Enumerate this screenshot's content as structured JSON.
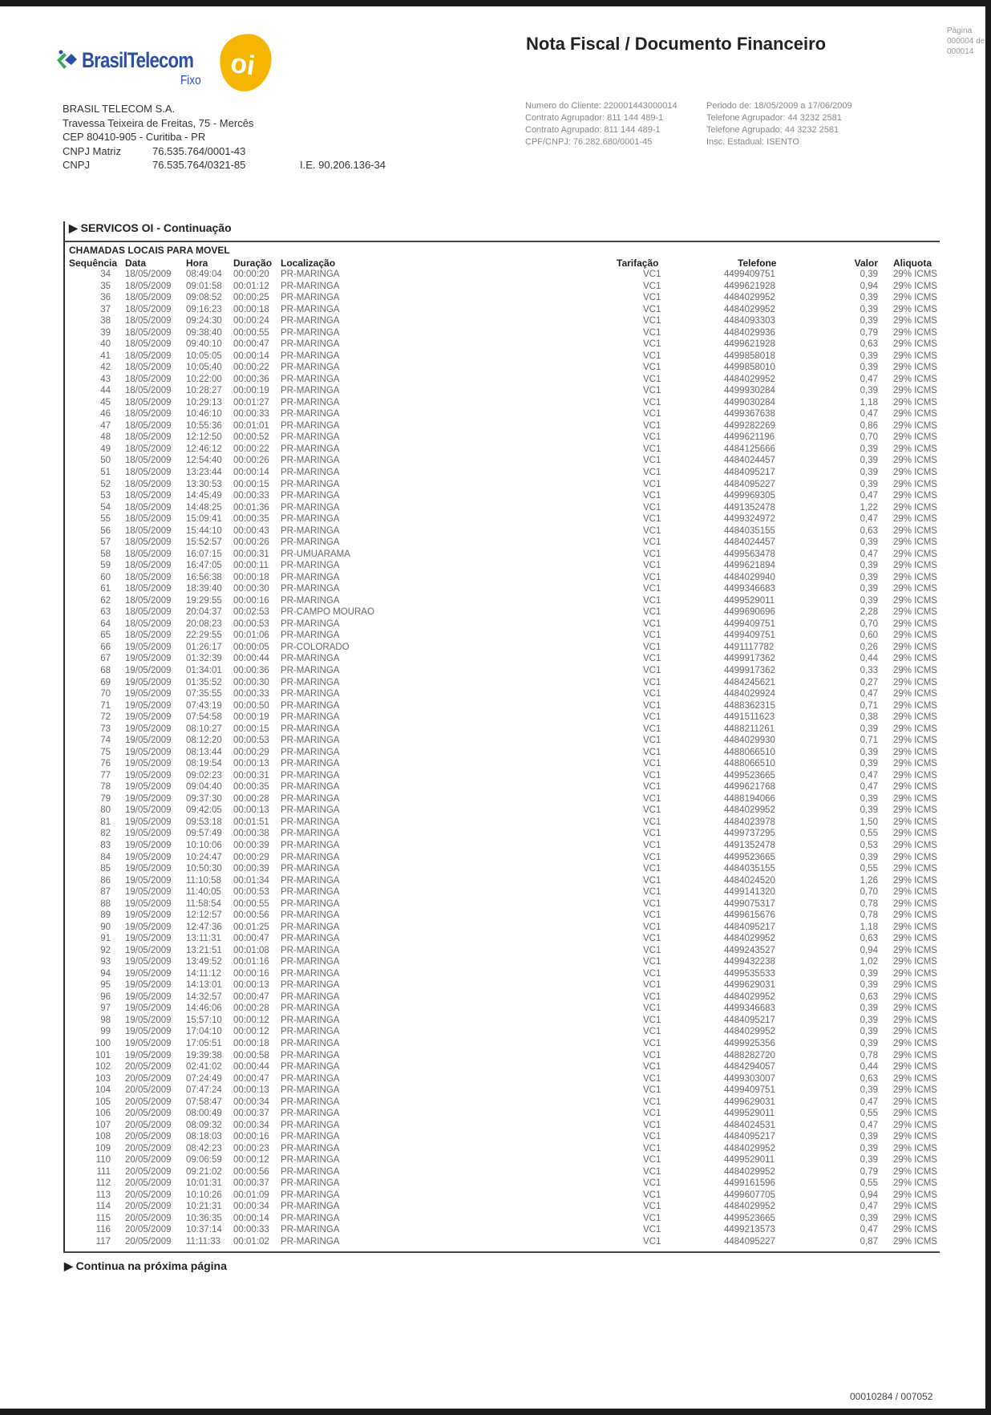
{
  "logo": {
    "brand": "BrasilTelecom",
    "sub": "Fixo",
    "oi": "oi",
    "colors": {
      "blue": "#2a4fa6",
      "green": "#3aa35a",
      "yellow": "#f5b500"
    }
  },
  "header": {
    "title": "Nota Fiscal / Documento Financeiro",
    "page_label": "Página",
    "page_current": "000004 de",
    "page_total": "000014"
  },
  "company": {
    "name": "BRASIL TELECOM S.A.",
    "address": "Travessa Teixeira de Freitas, 75 - Mercês",
    "cep": "CEP 80410-905 - Curitiba - PR",
    "cnpj_matriz_label": "CNPJ Matriz",
    "cnpj_matriz": "76.535.764/0001-43",
    "cnpj_label": "CNPJ",
    "cnpj": "76.535.764/0321-85",
    "ie": "I.E. 90.206.136-34"
  },
  "client": {
    "numero_cliente": "Numero do Cliente: 220001443000014",
    "periodo": "Periodo de: 18/05/2009 a 17/06/2009",
    "contrato_agrupador": "Contrato Agrupador: 811 144 489-1",
    "telefone_agrupador": "Telefone Agrupador: 44 3232 2581",
    "contrato_agrupado": "Contrato Agrupado: 811 144 489-1",
    "telefone_agrupado": "Telefone Agrupado: 44 3232 2581",
    "cpf_cnpj": "CPF/CNPJ: 76.282.680/0001-45",
    "insc_estadual": "Insc. Estadual: ISENTO"
  },
  "section": {
    "title": "SERVICOS OI - Continuação",
    "subtitle": "CHAMADAS LOCAIS PARA MOVEL",
    "columns": [
      "Sequência",
      "Data",
      "Hora",
      "Duração",
      "Localização",
      "Tarifação",
      "Telefone",
      "Valor",
      "Aliquota"
    ],
    "rows": [
      [
        "34",
        "18/05/2009",
        "08:49:04",
        "00:00:20",
        "PR-MARINGA",
        "VC1",
        "4499409751",
        "0,39",
        "29% ICMS"
      ],
      [
        "35",
        "18/05/2009",
        "09:01:58",
        "00:01:12",
        "PR-MARINGA",
        "VC1",
        "4499621928",
        "0,94",
        "29% ICMS"
      ],
      [
        "36",
        "18/05/2009",
        "09:08:52",
        "00:00:25",
        "PR-MARINGA",
        "VC1",
        "4484029952",
        "0,39",
        "29% ICMS"
      ],
      [
        "37",
        "18/05/2009",
        "09:16:23",
        "00:00:18",
        "PR-MARINGA",
        "VC1",
        "4484029952",
        "0,39",
        "29% ICMS"
      ],
      [
        "38",
        "18/05/2009",
        "09:24:30",
        "00:00:24",
        "PR-MARINGA",
        "VC1",
        "4484093303",
        "0,39",
        "29% ICMS"
      ],
      [
        "39",
        "18/05/2009",
        "09:38:40",
        "00:00:55",
        "PR-MARINGA",
        "VC1",
        "4484029936",
        "0,79",
        "29% ICMS"
      ],
      [
        "40",
        "18/05/2009",
        "09:40:10",
        "00:00:47",
        "PR-MARINGA",
        "VC1",
        "4499621928",
        "0,63",
        "29% ICMS"
      ],
      [
        "41",
        "18/05/2009",
        "10:05:05",
        "00:00:14",
        "PR-MARINGA",
        "VC1",
        "4499858018",
        "0,39",
        "29% ICMS"
      ],
      [
        "42",
        "18/05/2009",
        "10:05:40",
        "00:00:22",
        "PR-MARINGA",
        "VC1",
        "4499858010",
        "0,39",
        "29% ICMS"
      ],
      [
        "43",
        "18/05/2009",
        "10:22:00",
        "00:00:36",
        "PR-MARINGA",
        "VC1",
        "4484029952",
        "0,47",
        "29% ICMS"
      ],
      [
        "44",
        "18/05/2009",
        "10:28:27",
        "00:00:19",
        "PR-MARINGA",
        "VC1",
        "4499930284",
        "0,39",
        "29% ICMS"
      ],
      [
        "45",
        "18/05/2009",
        "10:29:13",
        "00:01:27",
        "PR-MARINGA",
        "VC1",
        "4499030284",
        "1,18",
        "29% ICMS"
      ],
      [
        "46",
        "18/05/2009",
        "10:46:10",
        "00:00:33",
        "PR-MARINGA",
        "VC1",
        "4499367638",
        "0,47",
        "29% ICMS"
      ],
      [
        "47",
        "18/05/2009",
        "10:55:36",
        "00:01:01",
        "PR-MARINGA",
        "VC1",
        "4499282269",
        "0,86",
        "29% ICMS"
      ],
      [
        "48",
        "18/05/2009",
        "12:12:50",
        "00:00:52",
        "PR-MARINGA",
        "VC1",
        "4499621196",
        "0,70",
        "29% ICMS"
      ],
      [
        "49",
        "18/05/2009",
        "12:46:12",
        "00:00:22",
        "PR-MARINGA",
        "VC1",
        "4484125666",
        "0,39",
        "29% ICMS"
      ],
      [
        "50",
        "18/05/2009",
        "12:54:40",
        "00:00:26",
        "PR-MARINGA",
        "VC1",
        "4484024457",
        "0,39",
        "29% ICMS"
      ],
      [
        "51",
        "18/05/2009",
        "13:23:44",
        "00:00:14",
        "PR-MARINGA",
        "VC1",
        "4484095217",
        "0,39",
        "29% ICMS"
      ],
      [
        "52",
        "18/05/2009",
        "13:30:53",
        "00:00:15",
        "PR-MARINGA",
        "VC1",
        "4484095227",
        "0,39",
        "29% ICMS"
      ],
      [
        "53",
        "18/05/2009",
        "14:45:49",
        "00:00:33",
        "PR-MARINGA",
        "VC1",
        "4499969305",
        "0,47",
        "29% ICMS"
      ],
      [
        "54",
        "18/05/2009",
        "14:48:25",
        "00:01:36",
        "PR-MARINGA",
        "VC1",
        "4491352478",
        "1,22",
        "29% ICMS"
      ],
      [
        "55",
        "18/05/2009",
        "15:09:41",
        "00:00:35",
        "PR-MARINGA",
        "VC1",
        "4499324972",
        "0,47",
        "29% ICMS"
      ],
      [
        "56",
        "18/05/2009",
        "15:44:10",
        "00:00:43",
        "PR-MARINGA",
        "VC1",
        "4484035155",
        "0,63",
        "29% ICMS"
      ],
      [
        "57",
        "18/05/2009",
        "15:52:57",
        "00:00:26",
        "PR-MARINGA",
        "VC1",
        "4484024457",
        "0,39",
        "29% ICMS"
      ],
      [
        "58",
        "18/05/2009",
        "16:07:15",
        "00:00:31",
        "PR-UMUARAMA",
        "VC1",
        "4499563478",
        "0,47",
        "29% ICMS"
      ],
      [
        "59",
        "18/05/2009",
        "16:47:05",
        "00:00:11",
        "PR-MARINGA",
        "VC1",
        "4499621894",
        "0,39",
        "29% ICMS"
      ],
      [
        "60",
        "18/05/2009",
        "16:56:38",
        "00:00:18",
        "PR-MARINGA",
        "VC1",
        "4484029940",
        "0,39",
        "29% ICMS"
      ],
      [
        "61",
        "18/05/2009",
        "18:39:40",
        "00:00:30",
        "PR-MARINGA",
        "VC1",
        "4499346683",
        "0,39",
        "29% ICMS"
      ],
      [
        "62",
        "18/05/2009",
        "19:29:55",
        "00:00:16",
        "PR-MARINGA",
        "VC1",
        "4499529011",
        "0,39",
        "29% ICMS"
      ],
      [
        "63",
        "18/05/2009",
        "20:04:37",
        "00:02:53",
        "PR-CAMPO MOURAO",
        "VC1",
        "4499690696",
        "2,28",
        "29% ICMS"
      ],
      [
        "64",
        "18/05/2009",
        "20:08:23",
        "00:00:53",
        "PR-MARINGA",
        "VC1",
        "4499409751",
        "0,70",
        "29% ICMS"
      ],
      [
        "65",
        "18/05/2009",
        "22:29:55",
        "00:01:06",
        "PR-MARINGA",
        "VC1",
        "4499409751",
        "0,60",
        "29% ICMS"
      ],
      [
        "66",
        "19/05/2009",
        "01:26:17",
        "00:00:05",
        "PR-COLORADO",
        "VC1",
        "4491117782",
        "0,26",
        "29% ICMS"
      ],
      [
        "67",
        "19/05/2009",
        "01:32:39",
        "00:00:44",
        "PR-MARINGA",
        "VC1",
        "4499917362",
        "0,44",
        "29% ICMS"
      ],
      [
        "68",
        "19/05/2009",
        "01:34:01",
        "00:00:36",
        "PR-MARINGA",
        "VC1",
        "4499917362",
        "0,33",
        "29% ICMS"
      ],
      [
        "69",
        "19/05/2009",
        "01:35:52",
        "00:00:30",
        "PR-MARINGA",
        "VC1",
        "4484245621",
        "0,27",
        "29% ICMS"
      ],
      [
        "70",
        "19/05/2009",
        "07:35:55",
        "00:00:33",
        "PR-MARINGA",
        "VC1",
        "4484029924",
        "0,47",
        "29% ICMS"
      ],
      [
        "71",
        "19/05/2009",
        "07:43:19",
        "00:00:50",
        "PR-MARINGA",
        "VC1",
        "4488362315",
        "0,71",
        "29% ICMS"
      ],
      [
        "72",
        "19/05/2009",
        "07:54:58",
        "00:00:19",
        "PR-MARINGA",
        "VC1",
        "4491511623",
        "0,38",
        "29% ICMS"
      ],
      [
        "73",
        "19/05/2009",
        "08:10:27",
        "00:00:15",
        "PR-MARINGA",
        "VC1",
        "4488211261",
        "0,39",
        "29% ICMS"
      ],
      [
        "74",
        "19/05/2009",
        "08:12:20",
        "00:00:53",
        "PR-MARINGA",
        "VC1",
        "4484029930",
        "0,71",
        "29% ICMS"
      ],
      [
        "75",
        "19/05/2009",
        "08:13:44",
        "00:00:29",
        "PR-MARINGA",
        "VC1",
        "4488066510",
        "0,39",
        "29% ICMS"
      ],
      [
        "76",
        "19/05/2009",
        "08:19:54",
        "00:00:13",
        "PR-MARINGA",
        "VC1",
        "4488066510",
        "0,39",
        "29% ICMS"
      ],
      [
        "77",
        "19/05/2009",
        "09:02:23",
        "00:00:31",
        "PR-MARINGA",
        "VC1",
        "4499523665",
        "0,47",
        "29% ICMS"
      ],
      [
        "78",
        "19/05/2009",
        "09:04:40",
        "00:00:35",
        "PR-MARINGA",
        "VC1",
        "4499621768",
        "0,47",
        "29% ICMS"
      ],
      [
        "79",
        "19/05/2009",
        "09:37:30",
        "00:00:28",
        "PR-MARINGA",
        "VC1",
        "4488194066",
        "0,39",
        "29% ICMS"
      ],
      [
        "80",
        "19/05/2009",
        "09:42:05",
        "00:00:13",
        "PR-MARINGA",
        "VC1",
        "4484029952",
        "0,39",
        "29% ICMS"
      ],
      [
        "81",
        "19/05/2009",
        "09:53:18",
        "00:01:51",
        "PR-MARINGA",
        "VC1",
        "4484023978",
        "1,50",
        "29% ICMS"
      ],
      [
        "82",
        "19/05/2009",
        "09:57:49",
        "00:00:38",
        "PR-MARINGA",
        "VC1",
        "4499737295",
        "0,55",
        "29% ICMS"
      ],
      [
        "83",
        "19/05/2009",
        "10:10:06",
        "00:00:39",
        "PR-MARINGA",
        "VC1",
        "4491352478",
        "0,53",
        "29% ICMS"
      ],
      [
        "84",
        "19/05/2009",
        "10:24:47",
        "00:00:29",
        "PR-MARINGA",
        "VC1",
        "4499523665",
        "0,39",
        "29% ICMS"
      ],
      [
        "85",
        "19/05/2009",
        "10:50:30",
        "00:00:39",
        "PR-MARINGA",
        "VC1",
        "4484035155",
        "0,55",
        "29% ICMS"
      ],
      [
        "86",
        "19/05/2009",
        "11:10:58",
        "00:01:34",
        "PR-MARINGA",
        "VC1",
        "4484024520",
        "1,26",
        "29% ICMS"
      ],
      [
        "87",
        "19/05/2009",
        "11:40:05",
        "00:00:53",
        "PR-MARINGA",
        "VC1",
        "4499141320",
        "0,70",
        "29% ICMS"
      ],
      [
        "88",
        "19/05/2009",
        "11:58:54",
        "00:00:55",
        "PR-MARINGA",
        "VC1",
        "4499075317",
        "0,78",
        "29% ICMS"
      ],
      [
        "89",
        "19/05/2009",
        "12:12:57",
        "00:00:56",
        "PR-MARINGA",
        "VC1",
        "4499615676",
        "0,78",
        "29% ICMS"
      ],
      [
        "90",
        "19/05/2009",
        "12:47:36",
        "00:01:25",
        "PR-MARINGA",
        "VC1",
        "4484095217",
        "1,18",
        "29% ICMS"
      ],
      [
        "91",
        "19/05/2009",
        "13:11:31",
        "00:00:47",
        "PR-MARINGA",
        "VC1",
        "4484029952",
        "0,63",
        "29% ICMS"
      ],
      [
        "92",
        "19/05/2009",
        "13:21:51",
        "00:01:08",
        "PR-MARINGA",
        "VC1",
        "4499243527",
        "0,94",
        "29% ICMS"
      ],
      [
        "93",
        "19/05/2009",
        "13:49:52",
        "00:01:16",
        "PR-MARINGA",
        "VC1",
        "4499432238",
        "1,02",
        "29% ICMS"
      ],
      [
        "94",
        "19/05/2009",
        "14:11:12",
        "00:00:16",
        "PR-MARINGA",
        "VC1",
        "4499535533",
        "0,39",
        "29% ICMS"
      ],
      [
        "95",
        "19/05/2009",
        "14:13:01",
        "00:00:13",
        "PR-MARINGA",
        "VC1",
        "4499629031",
        "0,39",
        "29% ICMS"
      ],
      [
        "96",
        "19/05/2009",
        "14:32:57",
        "00:00:47",
        "PR-MARINGA",
        "VC1",
        "4484029952",
        "0,63",
        "29% ICMS"
      ],
      [
        "97",
        "19/05/2009",
        "14:46:06",
        "00:00:28",
        "PR-MARINGA",
        "VC1",
        "4499346683",
        "0,39",
        "29% ICMS"
      ],
      [
        "98",
        "19/05/2009",
        "15:57:10",
        "00:00:12",
        "PR-MARINGA",
        "VC1",
        "4484095217",
        "0,39",
        "29% ICMS"
      ],
      [
        "99",
        "19/05/2009",
        "17:04:10",
        "00:00:12",
        "PR-MARINGA",
        "VC1",
        "4484029952",
        "0,39",
        "29% ICMS"
      ],
      [
        "100",
        "19/05/2009",
        "17:05:51",
        "00:00:18",
        "PR-MARINGA",
        "VC1",
        "4499925356",
        "0,39",
        "29% ICMS"
      ],
      [
        "101",
        "19/05/2009",
        "19:39:38",
        "00:00:58",
        "PR-MARINGA",
        "VC1",
        "4488282720",
        "0,78",
        "29% ICMS"
      ],
      [
        "102",
        "20/05/2009",
        "02:41:02",
        "00:00:44",
        "PR-MARINGA",
        "VC1",
        "4484294057",
        "0,44",
        "29% ICMS"
      ],
      [
        "103",
        "20/05/2009",
        "07:24:49",
        "00:00:47",
        "PR-MARINGA",
        "VC1",
        "4499303007",
        "0,63",
        "29% ICMS"
      ],
      [
        "104",
        "20/05/2009",
        "07:47:24",
        "00:00:13",
        "PR-MARINGA",
        "VC1",
        "4499409751",
        "0,39",
        "29% ICMS"
      ],
      [
        "105",
        "20/05/2009",
        "07:58:47",
        "00:00:34",
        "PR-MARINGA",
        "VC1",
        "4499629031",
        "0,47",
        "29% ICMS"
      ],
      [
        "106",
        "20/05/2009",
        "08:00:49",
        "00:00:37",
        "PR-MARINGA",
        "VC1",
        "4499529011",
        "0,55",
        "29% ICMS"
      ],
      [
        "107",
        "20/05/2009",
        "08:09:32",
        "00:00:34",
        "PR-MARINGA",
        "VC1",
        "4484024531",
        "0,47",
        "29% ICMS"
      ],
      [
        "108",
        "20/05/2009",
        "08:18:03",
        "00:00:16",
        "PR-MARINGA",
        "VC1",
        "4484095217",
        "0,39",
        "29% ICMS"
      ],
      [
        "109",
        "20/05/2009",
        "08:42:23",
        "00:00:23",
        "PR-MARINGA",
        "VC1",
        "4484029952",
        "0,39",
        "29% ICMS"
      ],
      [
        "110",
        "20/05/2009",
        "09:06:59",
        "00:00:12",
        "PR-MARINGA",
        "VC1",
        "4499529011",
        "0,39",
        "29% ICMS"
      ],
      [
        "111",
        "20/05/2009",
        "09:21:02",
        "00:00:56",
        "PR-MARINGA",
        "VC1",
        "4484029952",
        "0,79",
        "29% ICMS"
      ],
      [
        "112",
        "20/05/2009",
        "10:01:31",
        "00:00:37",
        "PR-MARINGA",
        "VC1",
        "4499161596",
        "0,55",
        "29% ICMS"
      ],
      [
        "113",
        "20/05/2009",
        "10:10:26",
        "00:01:09",
        "PR-MARINGA",
        "VC1",
        "4499607705",
        "0,94",
        "29% ICMS"
      ],
      [
        "114",
        "20/05/2009",
        "10:21:31",
        "00:00:34",
        "PR-MARINGA",
        "VC1",
        "4484029952",
        "0,47",
        "29% ICMS"
      ],
      [
        "115",
        "20/05/2009",
        "10:36:35",
        "00:00:14",
        "PR-MARINGA",
        "VC1",
        "4499523665",
        "0,39",
        "29% ICMS"
      ],
      [
        "116",
        "20/05/2009",
        "10:37:14",
        "00:00:33",
        "PR-MARINGA",
        "VC1",
        "4499213573",
        "0,47",
        "29% ICMS"
      ],
      [
        "117",
        "20/05/2009",
        "11:11:33",
        "00:01:02",
        "PR-MARINGA",
        "VC1",
        "4484095227",
        "0,87",
        "29% ICMS"
      ]
    ],
    "continue_label": "Continua na próxima página"
  },
  "footer": {
    "code": "00010284 / 007052"
  }
}
